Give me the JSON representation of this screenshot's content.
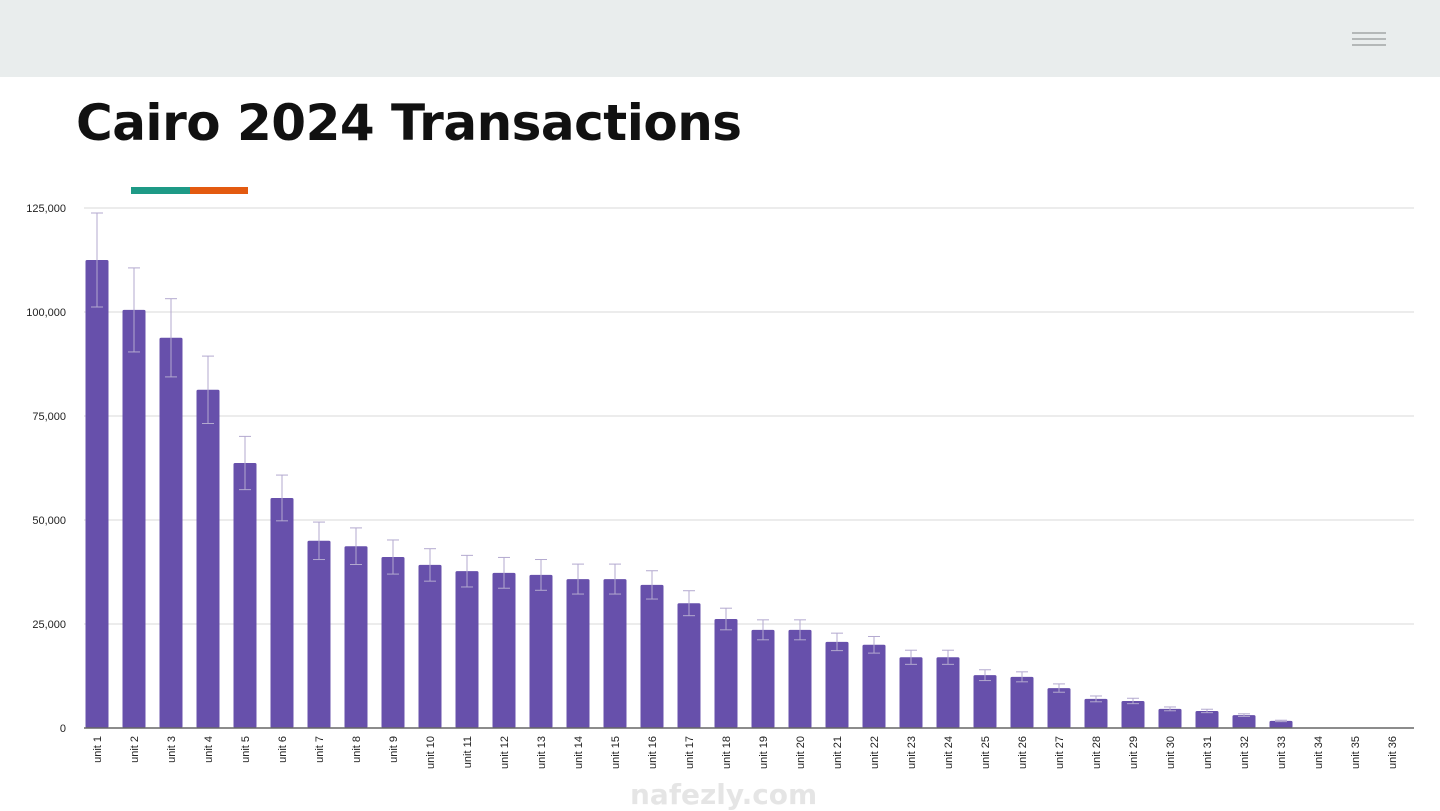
{
  "header": {
    "menu_icon": "hamburger-menu-icon"
  },
  "page": {
    "title": "Cairo 2024 Transactions"
  },
  "colors": {
    "bar": "#6750ab",
    "error": "#b3a9cf",
    "accent_teal": "#1e9a86",
    "accent_orange": "#e35a10",
    "grid": "#d9d9d9",
    "axis": "#666666"
  },
  "watermark": "nafezly.com",
  "chart_data": {
    "type": "bar",
    "title": "Cairo 2024 Transactions",
    "xlabel": "",
    "ylabel": "",
    "ylim": [
      0,
      125000
    ],
    "yticks": [
      0,
      25000,
      50000,
      75000,
      100000,
      125000
    ],
    "ytick_labels": [
      "0",
      "25,000",
      "50,000",
      "75,000",
      "100,000",
      "125,000"
    ],
    "grid": true,
    "error_bars": "approx ±10%",
    "categories": [
      "unit 1",
      "unit 2",
      "unit 3",
      "unit 4",
      "unit 5",
      "unit 6",
      "unit 7",
      "unit 8",
      "unit 9",
      "unit 10",
      "unit 11",
      "unit 12",
      "unit 13",
      "unit 14",
      "unit 15",
      "unit 16",
      "unit 17",
      "unit 18",
      "unit 19",
      "unit 20",
      "unit 21",
      "unit 22",
      "unit 23",
      "unit 24",
      "unit 25",
      "unit 26",
      "unit 27",
      "unit 28",
      "unit 29",
      "unit 30",
      "unit 31",
      "unit 32",
      "unit 33",
      "unit 34",
      "unit 35",
      "unit 36"
    ],
    "values": [
      112500,
      100500,
      93800,
      81300,
      63700,
      55300,
      45000,
      43700,
      41100,
      39200,
      37700,
      37300,
      36800,
      35800,
      35800,
      34400,
      30000,
      26200,
      23600,
      23600,
      20700,
      20000,
      17000,
      17000,
      12700,
      12300,
      9600,
      7000,
      6500,
      4600,
      4100,
      3100,
      1700,
      0,
      0,
      0
    ],
    "errors": [
      11300,
      10100,
      9400,
      8100,
      6400,
      5500,
      4500,
      4400,
      4100,
      3900,
      3800,
      3700,
      3700,
      3600,
      3600,
      3400,
      3000,
      2600,
      2400,
      2400,
      2100,
      2000,
      1700,
      1700,
      1300,
      1200,
      1000,
      700,
      650,
      460,
      410,
      310,
      170,
      0,
      0,
      0
    ]
  }
}
